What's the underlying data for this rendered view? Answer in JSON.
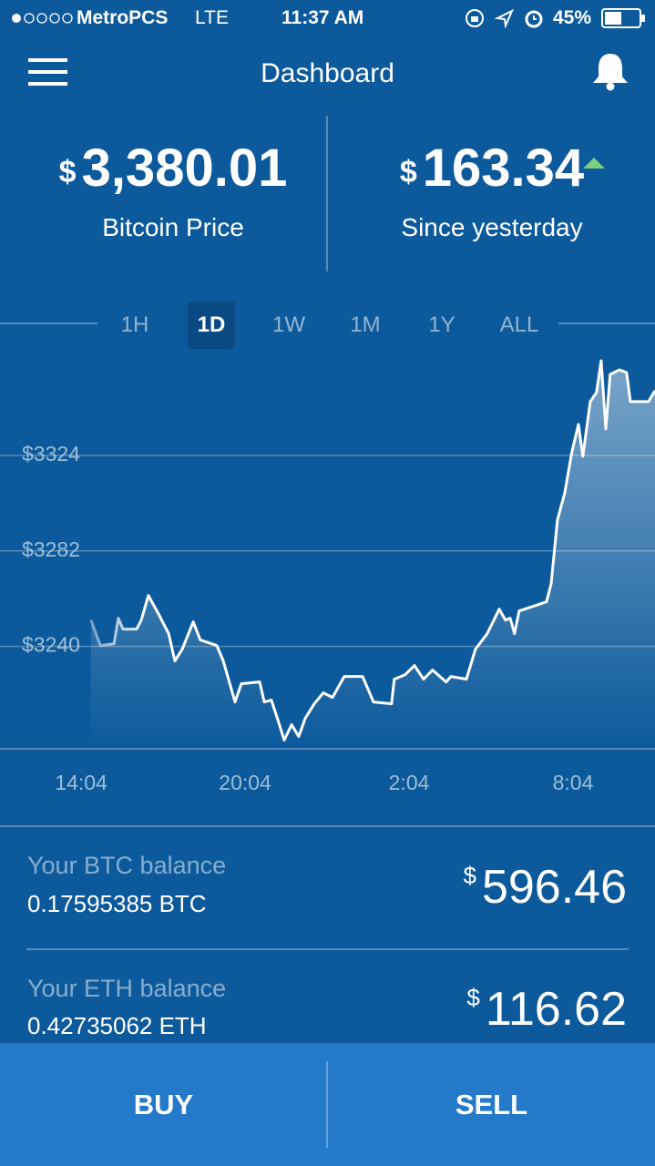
{
  "status_bar": {
    "carrier": "MetroPCS",
    "network": "LTE",
    "time": "11:37 AM",
    "battery": "45%"
  },
  "header": {
    "title": "Dashboard"
  },
  "summary": [
    {
      "currency": "$",
      "value": "3,380.01",
      "label": "Bitcoin Price"
    },
    {
      "currency": "$",
      "value": "163.34",
      "label": "Since yesterday"
    }
  ],
  "range_tabs": [
    "1H",
    "1D",
    "1W",
    "1M",
    "1Y",
    "ALL"
  ],
  "chart_data": {
    "type": "line",
    "color": "#ffffff",
    "grid": true,
    "x": [
      14.43,
      14.77,
      15.27,
      15.43,
      15.6,
      16.1,
      16.27,
      16.53,
      16.93,
      17.27,
      17.5,
      17.77,
      18.17,
      18.43,
      19.03,
      19.27,
      19.7,
      19.93,
      20.6,
      20.77,
      21.03,
      21.27,
      21.5,
      21.77,
      22.03,
      22.27,
      22.6,
      22.93,
      23.27,
      23.7,
      24.37,
      24.77,
      25.43,
      25.53,
      25.93,
      26.27,
      26.6,
      26.93,
      27.43,
      27.6,
      28.17,
      28.5,
      28.93,
      29.37,
      29.6,
      29.77,
      29.93,
      30.1,
      30.6,
      31.1,
      31.27,
      31.5,
      31.77,
      32.03,
      32.27,
      32.43,
      32.7,
      32.93,
      33.1,
      33.27,
      33.43,
      33.77,
      34.03,
      34.17,
      34.6,
      34.83,
      35.07
    ],
    "values": [
      3251.6,
      3240.4,
      3241.2,
      3252.4,
      3247.6,
      3247.6,
      3251.6,
      3262.4,
      3253.6,
      3245.6,
      3233.6,
      3238.8,
      3250.8,
      3242.8,
      3240.4,
      3233.6,
      3215.6,
      3223.6,
      3224.4,
      3215.6,
      3216.4,
      3207.6,
      3198.8,
      3205.6,
      3200.4,
      3208.4,
      3214.8,
      3219.6,
      3217.6,
      3226.8,
      3226.8,
      3215.6,
      3214.8,
      3225.6,
      3227.6,
      3231.6,
      3225.6,
      3229.6,
      3224.4,
      3226.8,
      3225.6,
      3238.8,
      3245.6,
      3256.4,
      3251.6,
      3252.4,
      3245.6,
      3255.6,
      3257.6,
      3259.6,
      3267.6,
      3295.6,
      3307.6,
      3325.6,
      3337.6,
      3323.6,
      3347.6,
      3351.6,
      3365.6,
      3335.6,
      3359.6,
      3361.6,
      3360.4,
      3347.6,
      3347.6,
      3347.6,
      3352.4
    ],
    "xlim": [
      11.1,
      35.07
    ],
    "ylim": [
      3195,
      3372
    ],
    "xticks": [
      {
        "value": 14.07,
        "label": "14:04"
      },
      {
        "value": 20.07,
        "label": "20:04"
      },
      {
        "value": 26.07,
        "label": "2:04"
      },
      {
        "value": 32.07,
        "label": "8:04"
      }
    ],
    "yticks": [
      {
        "value": 3240,
        "label": "$3240"
      },
      {
        "value": 3282,
        "label": "$3282"
      },
      {
        "value": 3324,
        "label": "$3324"
      }
    ]
  },
  "balances": [
    {
      "label": "Your BTC balance",
      "amount": "0.17595385 BTC",
      "currency": "$",
      "value": "596.46"
    },
    {
      "label": "Your ETH balance",
      "amount": "0.42735062 ETH",
      "currency": "$",
      "value": "116.62"
    }
  ],
  "actions": [
    "BUY",
    "SELL"
  ]
}
